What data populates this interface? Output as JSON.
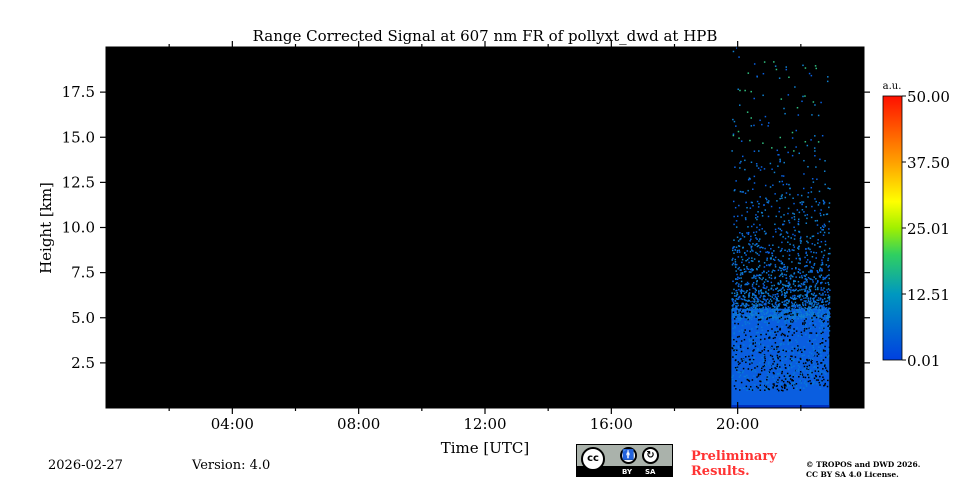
{
  "chart_data": {
    "type": "heatmap",
    "title": "Range Corrected Signal at 607 nm FR of pollyxt_dwd at HPB",
    "xlabel": "Time [UTC]",
    "ylabel": "Height [km]",
    "xlim_hours": [
      0,
      24
    ],
    "ylim": [
      0,
      20
    ],
    "xticks": [
      {
        "v": 4,
        "label": "04:00"
      },
      {
        "v": 8,
        "label": "08:00"
      },
      {
        "v": 12,
        "label": "12:00"
      },
      {
        "v": 16,
        "label": "16:00"
      },
      {
        "v": 20,
        "label": "20:00"
      }
    ],
    "yticks": [
      {
        "v": 2.5,
        "label": "2.5"
      },
      {
        "v": 5,
        "label": "5.0"
      },
      {
        "v": 7.5,
        "label": "7.5"
      },
      {
        "v": 10,
        "label": "10.0"
      },
      {
        "v": 12.5,
        "label": "12.5"
      },
      {
        "v": 15,
        "label": "15.0"
      },
      {
        "v": 17.5,
        "label": "17.5"
      }
    ],
    "data_period_hours": [
      19.8,
      22.9
    ],
    "colorbar": {
      "label": "a.u.",
      "range": [
        0.01,
        50
      ],
      "ticks": [
        "0.01",
        "12.51",
        "25.01",
        "37.50",
        "50.00"
      ],
      "colormap": [
        "#0040e0",
        "#0090c0",
        "#20c080",
        "#60f000",
        "#ffff00",
        "#ffa000",
        "#ff4000",
        "#ff1000"
      ]
    }
  },
  "footer": {
    "date": "2026-02-27",
    "version": "Version: 4.0",
    "preliminary": "Preliminary Results.",
    "preliminary_l1": "Preliminary",
    "preliminary_l2": "Results.",
    "copyright_l1": "© TROPOS and DWD 2026.",
    "copyright_l2": "CC BY SA 4.0 License.",
    "cc_by": "BY",
    "cc_sa": "SA",
    "cc": "cc"
  },
  "colors": {
    "preliminary": "#ff3333"
  }
}
